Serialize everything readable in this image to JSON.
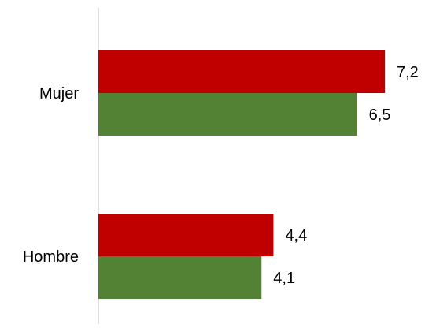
{
  "chart_data": {
    "type": "bar",
    "orientation": "horizontal",
    "categories": [
      "Mujer",
      "Hombre"
    ],
    "series": [
      {
        "values": [
          7.2,
          4.4
        ],
        "color": "#C00000"
      },
      {
        "values": [
          6.5,
          4.1
        ],
        "color": "#548235"
      }
    ],
    "value_labels": {
      "series_0": [
        "7,2",
        "4,4"
      ],
      "series_1": [
        "6,5",
        "4,1"
      ]
    },
    "xlim": [
      0,
      8
    ],
    "grid": false,
    "legend": "none",
    "axis_color": "#BFBFBF"
  }
}
